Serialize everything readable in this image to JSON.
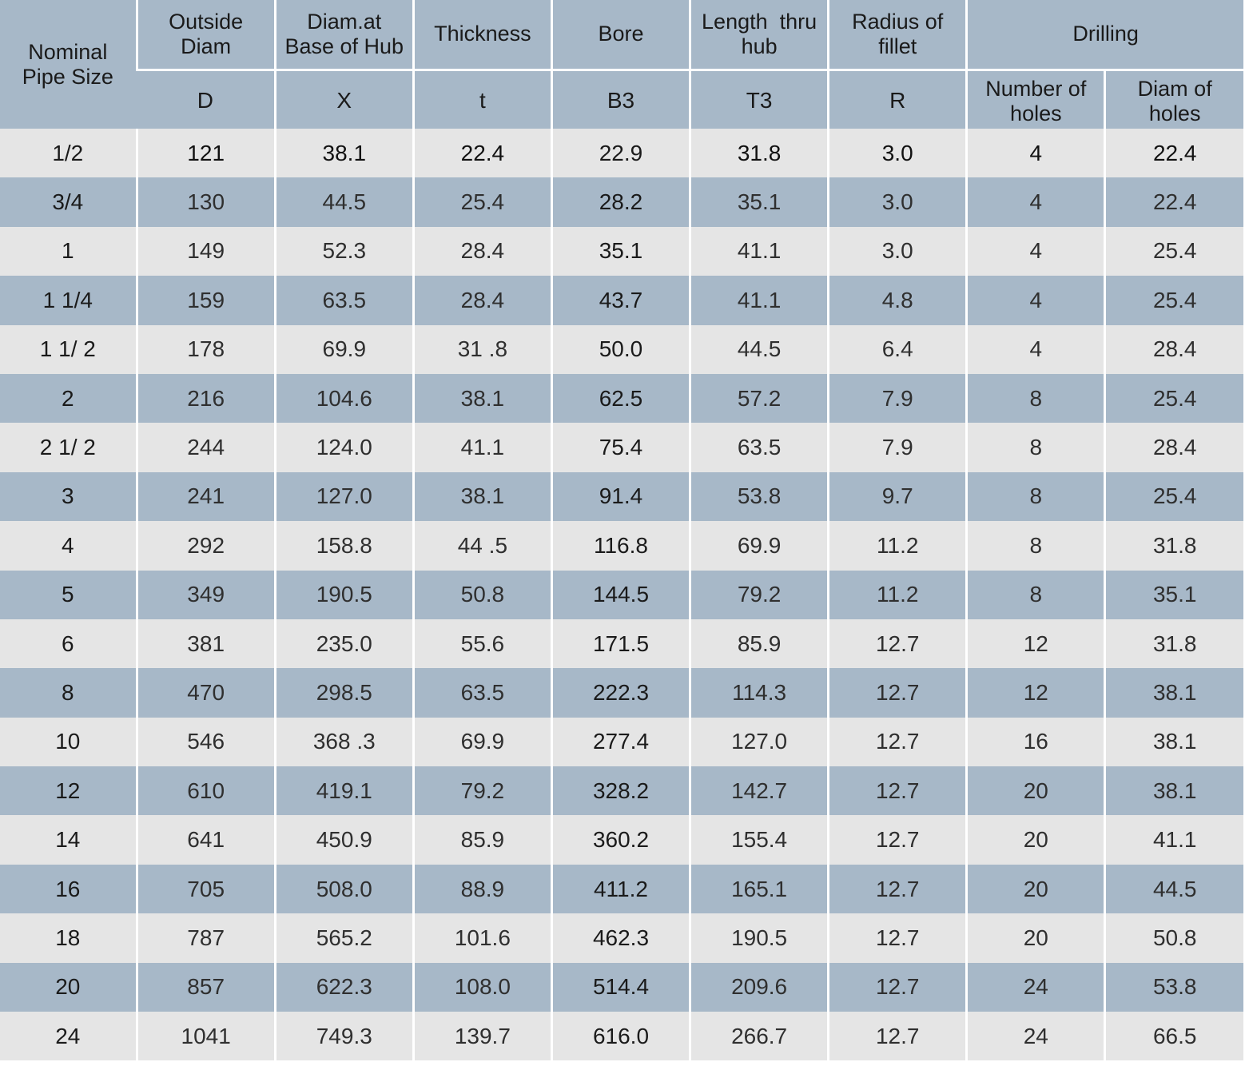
{
  "table": {
    "headers": {
      "nominal": "Nominal\nPipe Size",
      "outside_diam": "Outside\nDiam",
      "diam_hub": "Diam.at\nBase of Hub",
      "thickness": "Thickness",
      "bore": "Bore",
      "length_hub": "Length  thru\nhub",
      "radius_fillet": "Radius of\nfillet",
      "drilling": "Drilling"
    },
    "symbols": {
      "outside_diam": "D",
      "diam_hub": "X",
      "thickness": "t",
      "bore": "B3",
      "length_hub": "T3",
      "radius_fillet": "R"
    },
    "drilling_sub": {
      "num_holes": "Number of\nholes",
      "diam_holes": "Diam of\nholes"
    },
    "rows": [
      {
        "size": "1/2",
        "d": "121",
        "x": "38.1",
        "t": "22.4",
        "b3": "22.9",
        "t3": "31.8",
        "r": "3.0",
        "holes": "4",
        "hole_diam": "22.4"
      },
      {
        "size": "3/4",
        "d": "130",
        "x": "44.5",
        "t": "25.4",
        "b3": "28.2",
        "t3": "35.1",
        "r": "3.0",
        "holes": "4",
        "hole_diam": "22.4"
      },
      {
        "size": "1",
        "d": "149",
        "x": "52.3",
        "t": "28.4",
        "b3": "35.1",
        "t3": "41.1",
        "r": "3.0",
        "holes": "4",
        "hole_diam": "25.4"
      },
      {
        "size": "1 1/4",
        "d": "159",
        "x": "63.5",
        "t": "28.4",
        "b3": "43.7",
        "t3": "41.1",
        "r": "4.8",
        "holes": "4",
        "hole_diam": "25.4"
      },
      {
        "size": "1 1/ 2",
        "d": "178",
        "x": "69.9",
        "t": "31 .8",
        "b3": "50.0",
        "t3": "44.5",
        "r": "6.4",
        "holes": "4",
        "hole_diam": "28.4"
      },
      {
        "size": "2",
        "d": "216",
        "x": "104.6",
        "t": "38.1",
        "b3": "62.5",
        "t3": "57.2",
        "r": "7.9",
        "holes": "8",
        "hole_diam": "25.4"
      },
      {
        "size": "2 1/ 2",
        "d": "244",
        "x": "124.0",
        "t": "41.1",
        "b3": "75.4",
        "t3": "63.5",
        "r": "7.9",
        "holes": "8",
        "hole_diam": "28.4"
      },
      {
        "size": "3",
        "d": "241",
        "x": "127.0",
        "t": "38.1",
        "b3": "91.4",
        "t3": "53.8",
        "r": "9.7",
        "holes": "8",
        "hole_diam": "25.4"
      },
      {
        "size": "4",
        "d": "292",
        "x": "158.8",
        "t": "44 .5",
        "b3": "116.8",
        "t3": "69.9",
        "r": "11.2",
        "holes": "8",
        "hole_diam": "31.8"
      },
      {
        "size": "5",
        "d": "349",
        "x": "190.5",
        "t": "50.8",
        "b3": "144.5",
        "t3": "79.2",
        "r": "11.2",
        "holes": "8",
        "hole_diam": "35.1"
      },
      {
        "size": "6",
        "d": "381",
        "x": "235.0",
        "t": "55.6",
        "b3": "171.5",
        "t3": "85.9",
        "r": "12.7",
        "holes": "12",
        "hole_diam": "31.8"
      },
      {
        "size": "8",
        "d": "470",
        "x": "298.5",
        "t": "63.5",
        "b3": "222.3",
        "t3": "114.3",
        "r": "12.7",
        "holes": "12",
        "hole_diam": "38.1"
      },
      {
        "size": "10",
        "d": "546",
        "x": "368 .3",
        "t": "69.9",
        "b3": "277.4",
        "t3": "127.0",
        "r": "12.7",
        "holes": "16",
        "hole_diam": "38.1"
      },
      {
        "size": "12",
        "d": "610",
        "x": "419.1",
        "t": "79.2",
        "b3": "328.2",
        "t3": "142.7",
        "r": "12.7",
        "holes": "20",
        "hole_diam": "38.1"
      },
      {
        "size": "14",
        "d": "641",
        "x": "450.9",
        "t": "85.9",
        "b3": "360.2",
        "t3": "155.4",
        "r": "12.7",
        "holes": "20",
        "hole_diam": "41.1"
      },
      {
        "size": "16",
        "d": "705",
        "x": "508.0",
        "t": "88.9",
        "b3": "411.2",
        "t3": "165.1",
        "r": "12.7",
        "holes": "20",
        "hole_diam": "44.5"
      },
      {
        "size": "18",
        "d": "787",
        "x": "565.2",
        "t": "101.6",
        "b3": "462.3",
        "t3": "190.5",
        "r": "12.7",
        "holes": "20",
        "hole_diam": "50.8"
      },
      {
        "size": "20",
        "d": "857",
        "x": "622.3",
        "t": "108.0",
        "b3": "514.4",
        "t3": "209.6",
        "r": "12.7",
        "holes": "24",
        "hole_diam": "53.8"
      },
      {
        "size": "24",
        "d": "1041",
        "x": "749.3",
        "t": "139.7",
        "b3": "616.0",
        "t3": "266.7",
        "r": "12.7",
        "holes": "24",
        "hole_diam": "66.5"
      }
    ]
  },
  "colors": {
    "header_bg": "#a7b8c8",
    "row_blue": "#a7b8c8",
    "row_light": "#e5e5e5",
    "divider": "#ffffff"
  }
}
